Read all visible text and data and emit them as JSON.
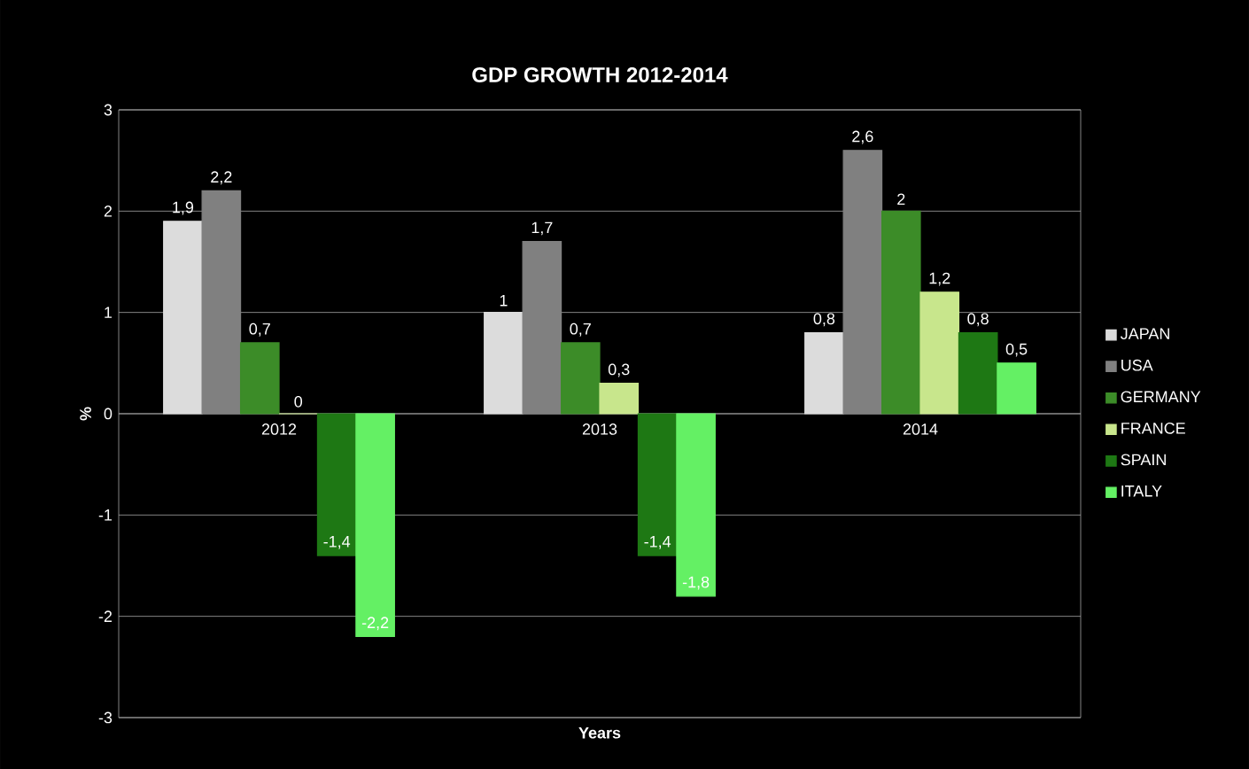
{
  "chart_data": {
    "type": "bar",
    "title": "GDP GROWTH 2012-2014",
    "xlabel": "Years",
    "ylabel": "%",
    "categories": [
      "2012",
      "2013",
      "2014"
    ],
    "series": [
      {
        "name": "JAPAN",
        "color": "#dcdcdc",
        "values": [
          1.9,
          1,
          0.8
        ],
        "value_labels": [
          "1,9",
          "1",
          "0,8"
        ]
      },
      {
        "name": "USA",
        "color": "#808080",
        "values": [
          2.2,
          1.7,
          2.6
        ],
        "value_labels": [
          "2,2",
          "1,7",
          "2,6"
        ]
      },
      {
        "name": "GERMANY",
        "color": "#3c8c28",
        "values": [
          0.7,
          0.7,
          2
        ],
        "value_labels": [
          "0,7",
          "0,7",
          "2"
        ]
      },
      {
        "name": "FRANCE",
        "color": "#c8e68c",
        "values": [
          0,
          0.3,
          1.2
        ],
        "value_labels": [
          "0",
          "0,3",
          "1,2"
        ]
      },
      {
        "name": "SPAIN",
        "color": "#1e7814",
        "values": [
          -1.4,
          -1.4,
          0.8
        ],
        "value_labels": [
          "-1,4",
          "-1,4",
          "0,8"
        ]
      },
      {
        "name": "ITALY",
        "color": "#64f064",
        "values": [
          -2.2,
          -1.8,
          0.5
        ],
        "value_labels": [
          "-2,2",
          "-1,8",
          "0,5"
        ]
      }
    ],
    "ylim": [
      -3,
      3
    ],
    "yticks": [
      -3,
      -2,
      -1,
      0,
      1,
      2,
      3
    ],
    "grid": "y",
    "legend": "right"
  }
}
